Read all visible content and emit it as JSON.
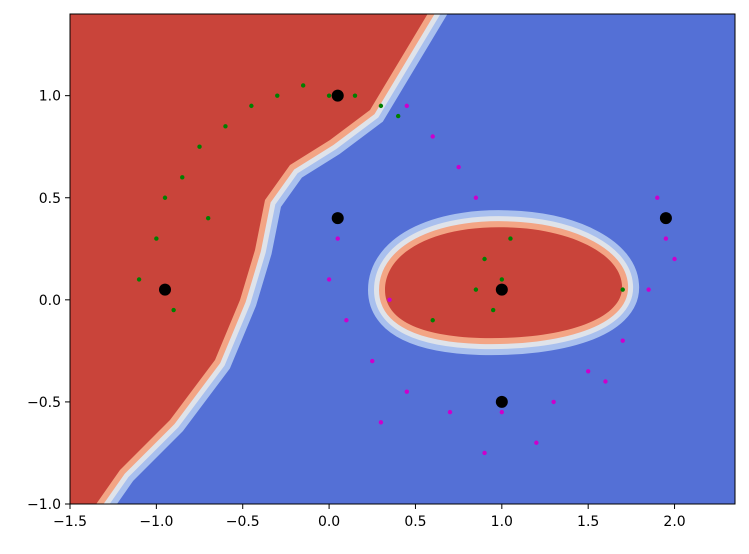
{
  "chart_data": {
    "type": "scatter",
    "xlim": [
      -1.5,
      2.35
    ],
    "ylim": [
      -1.0,
      1.4
    ],
    "xticks": [
      {
        "value": -1.5,
        "label": "−1.5"
      },
      {
        "value": -1.0,
        "label": "−1.0"
      },
      {
        "value": -0.5,
        "label": "−0.5"
      },
      {
        "value": 0.0,
        "label": "0.0"
      },
      0.5,
      {
        "value": 1.0,
        "label": "1.0"
      },
      1.5,
      {
        "value": 2.0,
        "label": "2.0"
      }
    ],
    "yticks": [
      {
        "value": -1.0,
        "label": "−1.0"
      },
      {
        "value": -0.5,
        "label": "−0.5"
      },
      {
        "value": 0.0,
        "label": "0.0"
      },
      0.5,
      {
        "value": 1.0,
        "label": "1.0"
      }
    ],
    "series": [
      {
        "color": "#cc00cc",
        "x": [
          0.45,
          0.6,
          0.75,
          0.85,
          0.05,
          0.0,
          0.1,
          0.25,
          0.45,
          0.7,
          1.0,
          1.3,
          1.5,
          1.7,
          1.85,
          1.95,
          1.9,
          0.3,
          0.9,
          1.2,
          0.35,
          1.6,
          2.0
        ],
        "y": [
          0.95,
          0.8,
          0.65,
          0.5,
          0.3,
          0.1,
          -0.1,
          -0.3,
          -0.45,
          -0.55,
          -0.55,
          -0.5,
          -0.35,
          -0.2,
          0.05,
          0.3,
          0.5,
          -0.6,
          -0.75,
          -0.7,
          0.0,
          -0.4,
          0.2
        ]
      },
      {
        "color": "#008000",
        "x": [
          -1.1,
          -1.0,
          -0.95,
          -0.85,
          -0.75,
          -0.6,
          -0.45,
          -0.3,
          -0.15,
          0.0,
          0.15,
          0.3,
          0.4,
          -0.9,
          -0.7,
          0.9,
          1.0,
          0.95,
          1.05,
          0.85,
          1.7,
          0.6
        ],
        "y": [
          0.1,
          0.3,
          0.5,
          0.6,
          0.75,
          0.85,
          0.95,
          1.0,
          1.05,
          1.0,
          1.0,
          0.95,
          0.9,
          -0.05,
          0.4,
          0.2,
          0.1,
          -0.05,
          0.3,
          0.05,
          0.05,
          -0.1
        ]
      },
      {
        "color": "#000000",
        "x": [
          -0.95,
          0.05,
          0.05,
          1.0,
          1.0,
          1.95
        ],
        "y": [
          0.05,
          1.0,
          0.4,
          0.05,
          -0.5,
          0.4
        ]
      }
    ]
  }
}
